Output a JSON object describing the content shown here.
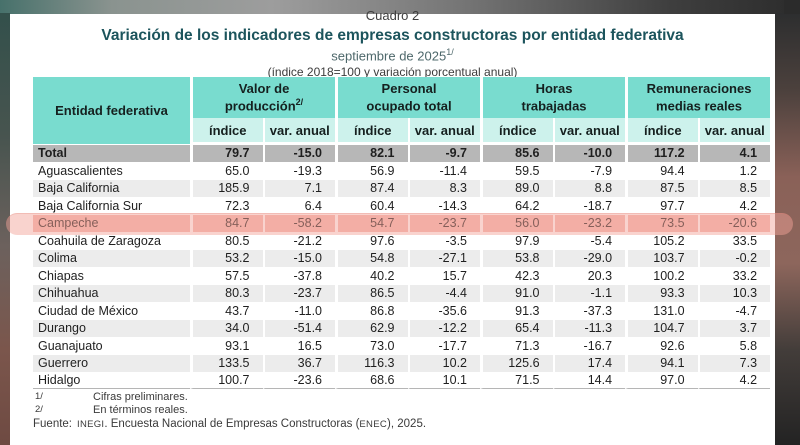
{
  "header": {
    "cuadro": "Cuadro 2",
    "title": "Variación de los indicadores de empresas constructoras por entidad federativa",
    "date": "septiembre de 2025",
    "date_sup": "1/",
    "note": "(índice 2018=100 y variación porcentual anual)"
  },
  "table": {
    "entity_header": "Entidad federativa",
    "groups": [
      {
        "line1": "Valor de",
        "line2": "producción",
        "sup": "2/"
      },
      {
        "line1": "Personal",
        "line2": "ocupado total",
        "sup": ""
      },
      {
        "line1": "Horas",
        "line2": "trabajadas",
        "sup": ""
      },
      {
        "line1": "Remuneraciones",
        "line2": "medias reales",
        "sup": ""
      }
    ],
    "sub_headers": [
      "índice",
      "var. anual"
    ],
    "rows": [
      {
        "name": "Total",
        "style": "total",
        "values": [
          79.7,
          -15.0,
          82.1,
          -9.7,
          85.6,
          -10.0,
          117.2,
          4.1
        ]
      },
      {
        "name": "Aguascalientes",
        "values": [
          65.0,
          -19.3,
          56.9,
          -11.4,
          59.5,
          -7.9,
          94.4,
          1.2
        ]
      },
      {
        "name": "Baja California",
        "values": [
          185.9,
          7.1,
          87.4,
          8.3,
          89.0,
          8.8,
          87.5,
          8.5
        ]
      },
      {
        "name": "Baja California Sur",
        "values": [
          72.3,
          6.4,
          60.4,
          -14.3,
          64.2,
          -18.7,
          97.7,
          4.2
        ]
      },
      {
        "name": "Campeche",
        "style": "highlight",
        "values": [
          84.7,
          -58.2,
          54.7,
          -23.7,
          56.0,
          -23.2,
          73.5,
          -20.6
        ]
      },
      {
        "name": "Coahuila de Zaragoza",
        "values": [
          80.5,
          -21.2,
          97.6,
          -3.5,
          97.9,
          -5.4,
          105.2,
          33.5
        ]
      },
      {
        "name": "Colima",
        "values": [
          53.2,
          -15.0,
          54.8,
          -27.1,
          53.8,
          -29.0,
          103.7,
          -0.2
        ]
      },
      {
        "name": "Chiapas",
        "values": [
          57.5,
          -37.8,
          40.2,
          15.7,
          42.3,
          20.3,
          100.2,
          33.2
        ]
      },
      {
        "name": "Chihuahua",
        "values": [
          80.3,
          -23.7,
          86.5,
          -4.4,
          91.0,
          -1.1,
          93.3,
          10.3
        ]
      },
      {
        "name": "Ciudad de México",
        "values": [
          43.7,
          -11.0,
          86.8,
          -35.6,
          91.3,
          -37.3,
          131.0,
          -4.7
        ]
      },
      {
        "name": "Durango",
        "values": [
          34.0,
          -51.4,
          62.9,
          -12.2,
          65.4,
          -11.3,
          104.7,
          3.7
        ]
      },
      {
        "name": "Guanajuato",
        "values": [
          93.1,
          16.5,
          73.0,
          -17.7,
          71.3,
          -16.7,
          92.6,
          5.8
        ]
      },
      {
        "name": "Guerrero",
        "values": [
          133.5,
          36.7,
          116.3,
          10.2,
          125.6,
          17.4,
          94.1,
          7.3
        ]
      },
      {
        "name": "Hidalgo",
        "values": [
          100.7,
          -23.6,
          68.6,
          10.1,
          71.5,
          14.4,
          97.0,
          4.2
        ]
      }
    ]
  },
  "footer": {
    "notes": [
      {
        "mark": "1/",
        "text": "Cifras preliminares."
      },
      {
        "mark": "2/",
        "text": "En términos reales."
      }
    ],
    "source_label": "Fuente:",
    "source_parts": [
      "INEGI",
      ". Encuesta Nacional de Empresas Constructoras (",
      "ENEC",
      "), 2025."
    ]
  },
  "colors": {
    "header_teal": "#79dccf",
    "subheader_mint": "#cdf2ec",
    "total_gray": "#b7b7b7",
    "zebra_gray": "#ececec",
    "highlight_pink": "#f3b9b0",
    "title_teal": "#1c545c"
  }
}
